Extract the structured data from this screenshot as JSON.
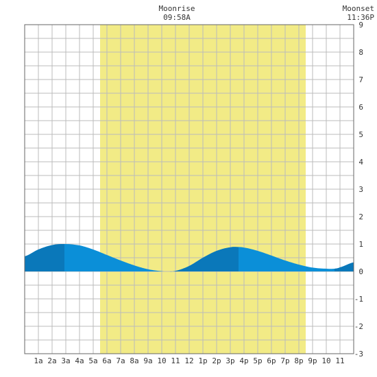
{
  "chart_data": {
    "type": "area",
    "title": "",
    "xlabel": "",
    "ylabel": "",
    "x_tick_labels": [
      "1a",
      "2a",
      "3a",
      "4a",
      "5a",
      "6a",
      "7a",
      "8a",
      "9a",
      "10",
      "11",
      "12",
      "1p",
      "2p",
      "3p",
      "4p",
      "5p",
      "6p",
      "7p",
      "8p",
      "9p",
      "10",
      "11"
    ],
    "y_ticks": [
      9,
      8,
      7,
      6,
      5,
      4,
      3,
      2,
      1,
      0,
      -1,
      -2,
      -3
    ],
    "xlim_hours": [
      0,
      24
    ],
    "ylim": [
      -3,
      9
    ],
    "grid": true,
    "daylight_band_hours": [
      5.5,
      20.5
    ],
    "moonrise": {
      "label": "Moonrise",
      "time": "09:58A",
      "hour": 10.97
    },
    "moonset": {
      "label": "Moonset",
      "time": "11:36P",
      "hour": 23.6
    },
    "series": [
      {
        "x_hours": [
          0,
          1,
          2,
          2.9,
          4,
          5,
          6,
          7,
          8,
          9,
          10,
          10.4,
          11,
          12,
          13,
          14,
          15,
          15.6,
          16,
          17,
          18,
          19,
          20,
          21,
          22,
          22.6,
          23,
          24
        ],
        "values": [
          0.55,
          0.8,
          0.96,
          1.0,
          0.95,
          0.8,
          0.6,
          0.4,
          0.22,
          0.08,
          0.01,
          0.0,
          0.02,
          0.2,
          0.5,
          0.75,
          0.88,
          0.89,
          0.87,
          0.75,
          0.58,
          0.4,
          0.25,
          0.14,
          0.1,
          0.1,
          0.15,
          0.33
        ]
      }
    ],
    "colors": {
      "daylight": "#f2eb86",
      "water": "#0b8fd8",
      "water_dark": "#0a78ba",
      "grid": "#bbbbbb",
      "frame": "#666666"
    }
  }
}
